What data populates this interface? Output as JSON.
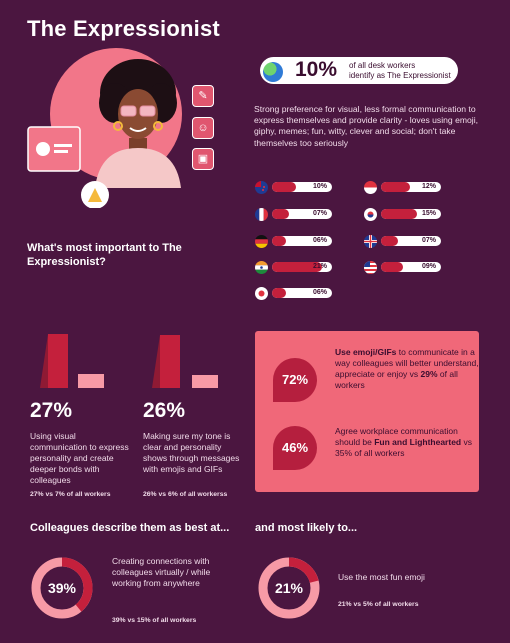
{
  "title": "The Expressionist",
  "stat": {
    "percent": "10%",
    "desc_line1": "of all desk workers",
    "desc_line2": "identify as The Expressionist"
  },
  "description": "Strong preference for visual, less formal communication to express themselves and provide clarity - loves using emoji, giphy, memes; fun, witty, clever and social; don't take themselves too seriously",
  "countries": [
    {
      "flag": "new-zealand-flag-icon",
      "value": "10%",
      "level": 0.1
    },
    {
      "flag": "singapore-flag-icon",
      "value": "12%",
      "level": 0.12
    },
    {
      "flag": "france-flag-icon",
      "value": "07%",
      "level": 0.07
    },
    {
      "flag": "south-korea-flag-icon",
      "value": "15%",
      "level": 0.15
    },
    {
      "flag": "germany-flag-icon",
      "value": "06%",
      "level": 0.06
    },
    {
      "flag": "uk-flag-icon",
      "value": "07%",
      "level": 0.07
    },
    {
      "flag": "india-flag-icon",
      "value": "21%",
      "level": 0.21
    },
    {
      "flag": "usa-flag-icon",
      "value": "09%",
      "level": 0.09
    },
    {
      "flag": "japan-flag-icon",
      "value": "06%",
      "level": 0.06
    }
  ],
  "most_important": "What's most important to The Expressionist?",
  "stats": [
    {
      "percent": "27%",
      "text": "Using visual communication to express personality and create deeper bonds with colleagues",
      "footnote": "27% vs 7% of all workers",
      "value": 27,
      "compare": 7
    },
    {
      "percent": "26%",
      "text": "Making sure my tone is clear and personality shows through messages with emojis and GIFs",
      "footnote": "26% vs 6% of all workerss",
      "value": 26,
      "compare": 6
    }
  ],
  "panel": [
    {
      "percent": "72%",
      "pre": "",
      "bold1": "Use emoji/GIFs",
      "mid": " to communicate in a way colleagues will better understand, appreciate or enjoy vs ",
      "bold2": "29%",
      "post": " of all workers"
    },
    {
      "percent": "46%",
      "pre": "Agree workplace communication should be ",
      "bold1": "Fun and Lighthearted",
      "mid": " vs 35% of all workers",
      "bold2": "",
      "post": ""
    }
  ],
  "describe": {
    "heading": "Colleagues describe them as best at...",
    "percent": "39%",
    "value": 39,
    "text": "Creating connections with colleagues virtually / while working from anywhere",
    "footnote": "39% vs 15% of all workers"
  },
  "likely": {
    "heading": "and most likely to...",
    "percent": "21%",
    "value": 21,
    "text": "Use the most fun emoji",
    "footnote": "21% vs 5% of all workers"
  },
  "colors": {
    "background": "#4b1640",
    "accent_red": "#c4203c",
    "pink": "#f06879",
    "light_pink": "#f79aa6"
  }
}
